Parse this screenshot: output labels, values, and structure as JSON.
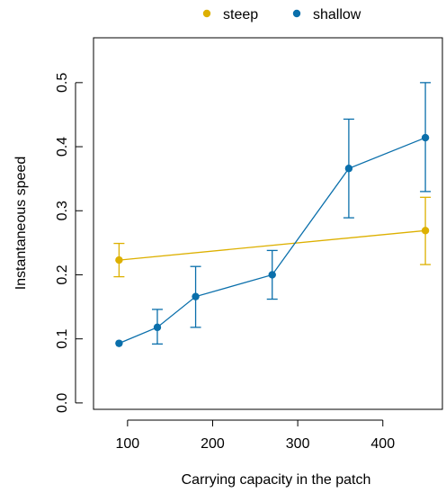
{
  "chart_data": {
    "type": "line",
    "xlabel": "Carrying capacity in the patch",
    "ylabel": "Instantaneous speed",
    "xlim": [
      60,
      470
    ],
    "ylim": [
      -0.01,
      0.57
    ],
    "xticks": [
      100,
      200,
      300,
      400
    ],
    "yticks": [
      0.0,
      0.1,
      0.2,
      0.3,
      0.4,
      0.5
    ],
    "xtick_labels": [
      "100",
      "200",
      "300",
      "400"
    ],
    "ytick_labels": [
      "0.0",
      "0.1",
      "0.2",
      "0.3",
      "0.4",
      "0.5"
    ],
    "legend": {
      "position": "top",
      "orientation": "horizontal"
    },
    "series": [
      {
        "name": "steep",
        "color": "#DDB000",
        "x": [
          90,
          450
        ],
        "y": [
          0.223,
          0.269
        ],
        "err_low": [
          0.197,
          0.216
        ],
        "err_high": [
          0.249,
          0.321
        ]
      },
      {
        "name": "shallow",
        "color": "#0A6FAB",
        "x": [
          90,
          135,
          180,
          270,
          360,
          450
        ],
        "y": [
          0.093,
          0.118,
          0.166,
          0.2,
          0.366,
          0.414
        ],
        "err_low": [
          0.093,
          0.092,
          0.118,
          0.162,
          0.289,
          0.33
        ],
        "err_high": [
          0.093,
          0.146,
          0.213,
          0.238,
          0.443,
          0.5
        ]
      }
    ]
  }
}
